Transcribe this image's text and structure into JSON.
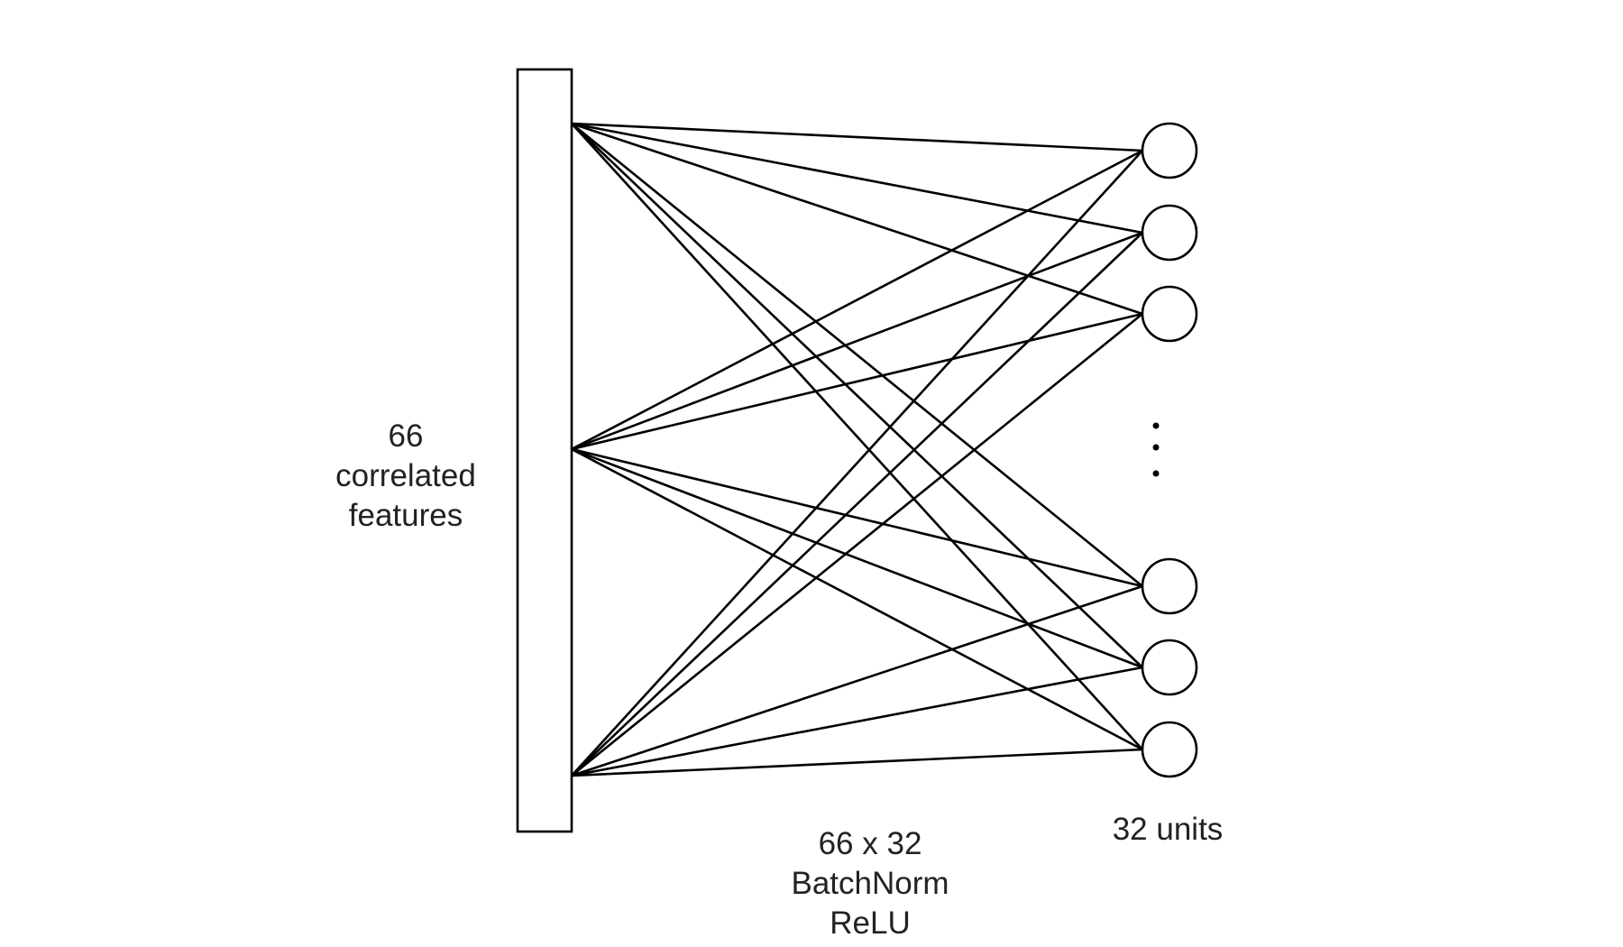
{
  "diagram": {
    "input": {
      "line1": "66",
      "line2": "correlated",
      "line3": "features"
    },
    "output": {
      "label": "32 units",
      "ellipsis": "⋮"
    },
    "layer": {
      "line1": "66 x 32",
      "line2": "BatchNorm",
      "line3": "ReLU"
    },
    "colors": {
      "stroke": "#000000",
      "text": "#222222",
      "background": "#ffffff"
    }
  }
}
